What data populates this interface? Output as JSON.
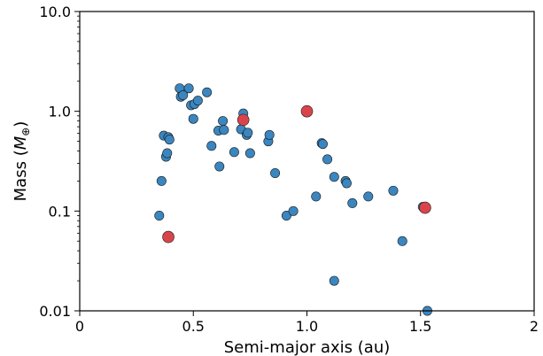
{
  "chart_data": {
    "type": "scatter",
    "xlabel": "Semi-major axis (au)",
    "ylabel_prefix": "Mass (",
    "ylabel_symbol": "M",
    "ylabel_subscript": "⊕",
    "ylabel_suffix": ")",
    "xlim": [
      0,
      2
    ],
    "ylim": [
      0.01,
      10
    ],
    "yscale": "log",
    "grid": false,
    "x_ticks": [
      0,
      0.5,
      1,
      1.5,
      2
    ],
    "x_tick_labels": [
      "0",
      "0.5",
      "1.0",
      "1.5",
      "2"
    ],
    "y_ticks": [
      0.01,
      0.1,
      1,
      10
    ],
    "y_tick_labels": [
      "0.01",
      "0.1",
      "1.0",
      "10.0"
    ],
    "colors": {
      "series_blue": "#3a86c0",
      "series_red": "#d9444b",
      "edge": "#1a1a1a"
    },
    "series": [
      {
        "color_key": "series_blue",
        "points": [
          [
            0.35,
            0.09
          ],
          [
            0.36,
            0.2
          ],
          [
            0.37,
            0.57
          ],
          [
            0.38,
            0.35
          ],
          [
            0.385,
            0.38
          ],
          [
            0.39,
            0.55
          ],
          [
            0.395,
            0.52
          ],
          [
            0.44,
            1.7
          ],
          [
            0.445,
            1.4
          ],
          [
            0.455,
            1.45
          ],
          [
            0.48,
            1.7
          ],
          [
            0.49,
            1.15
          ],
          [
            0.5,
            0.84
          ],
          [
            0.505,
            1.18
          ],
          [
            0.52,
            1.28
          ],
          [
            0.56,
            1.55
          ],
          [
            0.58,
            0.45
          ],
          [
            0.61,
            0.64
          ],
          [
            0.615,
            0.28
          ],
          [
            0.63,
            0.8
          ],
          [
            0.635,
            0.65
          ],
          [
            0.68,
            0.39
          ],
          [
            0.71,
            0.66
          ],
          [
            0.72,
            0.95
          ],
          [
            0.735,
            0.58
          ],
          [
            0.74,
            0.61
          ],
          [
            0.75,
            0.38
          ],
          [
            0.83,
            0.5
          ],
          [
            0.835,
            0.58
          ],
          [
            0.86,
            0.24
          ],
          [
            0.91,
            0.09
          ],
          [
            0.94,
            0.1
          ],
          [
            1.04,
            0.14
          ],
          [
            1.065,
            0.48
          ],
          [
            1.07,
            0.47
          ],
          [
            1.09,
            0.33
          ],
          [
            1.12,
            0.22
          ],
          [
            1.12,
            0.02
          ],
          [
            1.17,
            0.2
          ],
          [
            1.175,
            0.19
          ],
          [
            1.2,
            0.12
          ],
          [
            1.27,
            0.14
          ],
          [
            1.38,
            0.16
          ],
          [
            1.42,
            0.05
          ],
          [
            1.51,
            0.11
          ],
          [
            1.53,
            0.01
          ]
        ]
      },
      {
        "color_key": "series_red",
        "points": [
          [
            0.39,
            0.055
          ],
          [
            0.72,
            0.82
          ],
          [
            1.0,
            1.0
          ],
          [
            1.52,
            0.108
          ]
        ]
      }
    ]
  }
}
